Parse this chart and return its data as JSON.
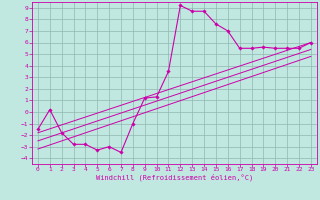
{
  "xlabel": "Windchill (Refroidissement éolien,°C)",
  "background_color": "#c0e8e0",
  "grid_color": "#90b8b0",
  "line_color": "#cc00aa",
  "xlim": [
    -0.5,
    23.5
  ],
  "ylim": [
    -4.5,
    9.5
  ],
  "xticks": [
    0,
    1,
    2,
    3,
    4,
    5,
    6,
    7,
    8,
    9,
    10,
    11,
    12,
    13,
    14,
    15,
    16,
    17,
    18,
    19,
    20,
    21,
    22,
    23
  ],
  "yticks": [
    -4,
    -3,
    -2,
    -1,
    0,
    1,
    2,
    3,
    4,
    5,
    6,
    7,
    8,
    9
  ],
  "curve1_x": [
    0,
    1,
    2,
    3,
    4,
    5,
    6,
    7,
    8,
    9,
    10,
    11,
    12,
    13,
    14,
    15,
    16,
    17,
    18,
    19,
    20,
    21,
    22,
    23
  ],
  "curve1_y": [
    -1.5,
    0.2,
    -1.8,
    -2.8,
    -2.8,
    -3.3,
    -3.0,
    -3.5,
    -1.0,
    1.2,
    1.3,
    3.5,
    9.2,
    8.7,
    8.7,
    7.6,
    7.0,
    5.5,
    5.5,
    5.6,
    5.5,
    5.5,
    5.5,
    6.0
  ],
  "line1_x": [
    0,
    23
  ],
  "line1_y": [
    -1.8,
    6.0
  ],
  "line2_x": [
    0,
    23
  ],
  "line2_y": [
    -2.5,
    5.4
  ],
  "line3_x": [
    0,
    23
  ],
  "line3_y": [
    -3.2,
    4.8
  ],
  "tick_fontsize": 4.5,
  "xlabel_fontsize": 5.0
}
